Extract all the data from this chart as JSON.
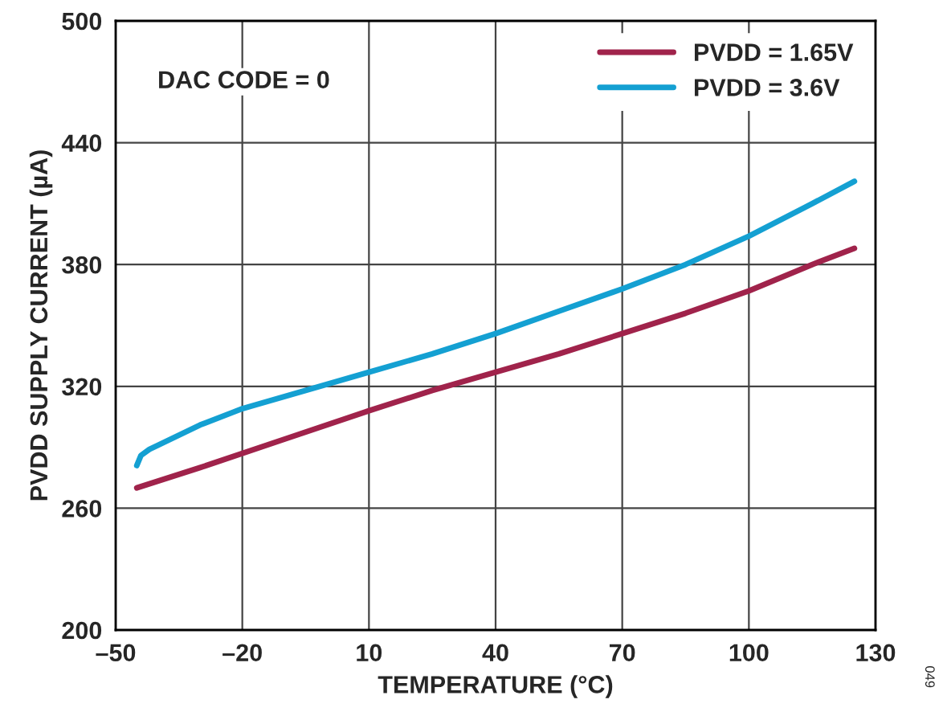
{
  "chart_data": {
    "type": "line",
    "xlabel": "TEMPERATURE (°C)",
    "ylabel": "PVDD SUPPLY CURRENT (µA)",
    "xlim": [
      -50,
      130
    ],
    "xticks": [
      {
        "value": -50,
        "label": "–50"
      },
      {
        "value": -20,
        "label": "–20"
      },
      10,
      40,
      70,
      100,
      130
    ],
    "ylim": [
      200,
      500
    ],
    "yticks": [
      200,
      260,
      320,
      380,
      440,
      500
    ],
    "grid": true,
    "legend": "top right",
    "line_style": "solid",
    "marker": "none",
    "series": [
      {
        "name": "PVDD = 1.65V",
        "color": "#a0234b",
        "x": [
          -45,
          -30,
          -10,
          10,
          25,
          40,
          55,
          70,
          85,
          100,
          115,
          125
        ],
        "values": [
          270,
          280,
          294,
          308,
          318,
          327,
          336,
          346,
          356,
          367,
          380,
          388
        ]
      },
      {
        "name": "PVDD = 3.6V",
        "color": "#14a0d2",
        "x": [
          -45,
          -44,
          -42,
          -40,
          -30,
          -20,
          -5,
          10,
          25,
          40,
          55,
          70,
          85,
          100,
          115,
          125
        ],
        "values": [
          281,
          286,
          289,
          291,
          301,
          309,
          318,
          327,
          336,
          346,
          357,
          368,
          380,
          394,
          410,
          421
        ]
      }
    ],
    "annotations": [
      "DAC CODE = 0",
      "049"
    ]
  }
}
